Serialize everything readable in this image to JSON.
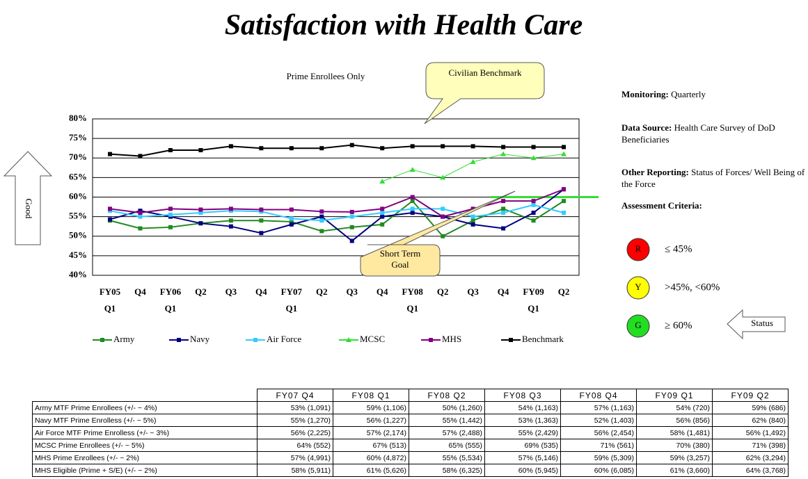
{
  "title": "Satisfaction with Health Care",
  "chart_data": {
    "type": "line",
    "subtitle": "Prime Enrollees Only",
    "categories": [
      "FY05\nQ1",
      "Q4",
      "FY06\nQ1",
      "Q2",
      "Q3",
      "Q4",
      "FY07\nQ1",
      "Q2",
      "Q3",
      "Q4",
      "FY08\nQ1",
      "Q2",
      "Q3",
      "Q4",
      "FY09\nQ1",
      "Q2"
    ],
    "series": [
      {
        "name": "Army",
        "color": "#218a21",
        "values": [
          54,
          52,
          52.3,
          53.3,
          54,
          54,
          53.7,
          51.3,
          52.3,
          53,
          59,
          50,
          54,
          57,
          54,
          59
        ]
      },
      {
        "name": "Navy",
        "color": "#000080",
        "values": [
          54.3,
          56.5,
          55,
          53.3,
          52.5,
          50.8,
          53,
          55,
          48.8,
          55,
          56,
          55,
          53,
          52,
          56,
          62
        ]
      },
      {
        "name": "Air Force",
        "color": "#33ccff",
        "values": [
          56.5,
          55,
          55.5,
          56,
          56.5,
          56.3,
          54.5,
          54,
          55,
          56,
          57,
          57,
          55,
          56,
          58,
          56
        ]
      },
      {
        "name": "MCSC",
        "color": "#33dd33",
        "values": [
          null,
          null,
          null,
          null,
          null,
          null,
          null,
          null,
          null,
          64,
          67,
          65,
          69,
          71,
          70,
          71
        ]
      },
      {
        "name": "MHS",
        "color": "#800080",
        "values": [
          57,
          56,
          57,
          56.8,
          57,
          56.8,
          56.8,
          56.3,
          56.2,
          57,
          60,
          55,
          57,
          59,
          59,
          62
        ]
      },
      {
        "name": "Benchmark",
        "color": "#000000",
        "values": [
          71,
          70.5,
          72,
          72,
          73,
          72.5,
          72.5,
          72.5,
          73.3,
          72.5,
          73,
          73,
          73,
          72.8,
          72.8,
          72.8
        ]
      }
    ],
    "ylim": [
      40,
      80
    ],
    "yticks": [
      {
        "value": 40,
        "label": "40%"
      },
      {
        "value": 45,
        "label": "45%"
      },
      {
        "value": 50,
        "label": "50%"
      },
      {
        "value": 55,
        "label": "55%"
      },
      {
        "value": 60,
        "label": "60%"
      },
      {
        "value": 65,
        "label": "65%"
      },
      {
        "value": 70,
        "label": "70%"
      },
      {
        "value": 75,
        "label": "75%"
      },
      {
        "value": 80,
        "label": "80%"
      }
    ],
    "grid": true,
    "goal": {
      "value": 60,
      "label": "Short Term Goal",
      "color": "#33dd33"
    },
    "callout": "Civilian Benchmark",
    "arrow_label": "Good"
  },
  "info": [
    {
      "label": "Monitoring:",
      "text": "Quarterly"
    },
    {
      "label": "Data Source:",
      "text": "Health Care Survey of DoD Beneficiaries"
    },
    {
      "label": "Other Reporting:",
      "text": "Status of Forces/ Well Being of the Force"
    },
    {
      "label": "Assessment Criteria:"
    }
  ],
  "criteria": [
    {
      "letter": "R",
      "color": "#ff0000",
      "text": "≤ 45%"
    },
    {
      "letter": "Y",
      "color": "#ffff00",
      "text": ">45%, <60%"
    },
    {
      "letter": "G",
      "color": "#22dd22",
      "text": "≥ 60%"
    }
  ],
  "status": "Status",
  "table": {
    "header": [
      "FY07 Q4",
      "FY08 Q1",
      "FY08 Q2",
      "FY08 Q3",
      "FY08 Q4",
      "FY09 Q1",
      "FY09 Q2"
    ],
    "rows": [
      {
        "label": "Army MTF Prime Enrollees (+/- ~ 4%)",
        "cells": [
          "53% (1,091)",
          "59% (1,106)",
          "50% (1,260)",
          "54% (1,163)",
          "57% (1,163)",
          "54% (720)",
          "59% (686)"
        ]
      },
      {
        "label": "Navy MTF Prime Enrolless (+/- ~ 5%)",
        "cells": [
          "55% (1,270)",
          "56% (1,227)",
          "55% (1,442)",
          "53% (1,363)",
          "52% (1,403)",
          "56% (856)",
          "62% (840)"
        ]
      },
      {
        "label": "Air Force MTF Prime Enrolless (+/- ~ 3%)",
        "cells": [
          "56% (2,225)",
          "57% (2,174)",
          "57% (2,488)",
          "55% (2,429)",
          "56% (2,454)",
          "58% (1,481)",
          "56% (1,492)"
        ]
      },
      {
        "label": "MCSC Prime Enrollees (+/- ~ 5%)",
        "cells": [
          "64% (552)",
          "67% (513)",
          "65% (555)",
          "69% (535)",
          "71% (561)",
          "70% (380)",
          "71% (398)"
        ]
      },
      {
        "label": "MHS Prime Enrollees (+/- ~ 2%)",
        "cells": [
          "57% (4,991)",
          "60% (4,872)",
          "55% (5,534)",
          "57% (5,146)",
          "59% (5,309)",
          "59% (3,257)",
          "62% (3,294)"
        ]
      },
      {
        "label": "MHS Eligible (Prime + S/E) (+/- ~ 2%)",
        "cells": [
          "58% (5,911)",
          "61% (5,626)",
          "58% (6,325)",
          "60% (5,945)",
          "60% (6,085)",
          "61% (3,660)",
          "64% (3,768)"
        ]
      }
    ]
  }
}
